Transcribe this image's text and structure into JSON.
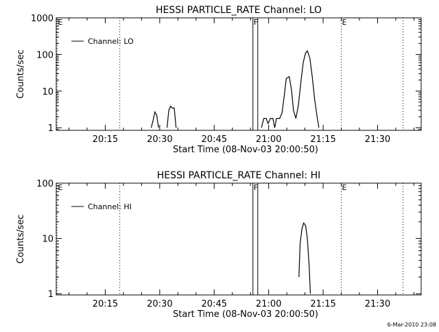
{
  "footer": {
    "timestamp": "6-Mar-2010 23:08"
  },
  "chart_data": [
    {
      "type": "line",
      "title": "HESSI PARTICLE_RATE Channel: LO",
      "xlabel": "Start Time (08-Nov-03 20:00:50)",
      "ylabel": "Counts/sec",
      "yscale": "log",
      "xlim": [
        "20:01:30",
        "21:42:00"
      ],
      "ylim": [
        0.85,
        1000
      ],
      "x_ticks": [
        "20:15",
        "20:30",
        "20:45",
        "21:00",
        "21:15",
        "21:30"
      ],
      "y_ticks": [
        "1",
        "10",
        "100",
        "1000"
      ],
      "legend": {
        "label": "Channel: LO",
        "position": "top-left"
      },
      "markers": [
        {
          "label": "E",
          "time": "20:01:45",
          "style": "dotted"
        },
        {
          "label": "",
          "time": "20:19:00",
          "style": "dotted"
        },
        {
          "label": "F",
          "time": "20:55:40",
          "style": "solid"
        },
        {
          "label": "",
          "time": "20:57:00",
          "style": "solid"
        },
        {
          "label": "E",
          "time": "21:20:00",
          "style": "dotted"
        },
        {
          "label": "",
          "time": "21:37:00",
          "style": "dotted"
        }
      ],
      "series": [
        {
          "name": "Channel: LO",
          "segments": [
            [
              [
                "20:27:40",
                1
              ],
              [
                "20:28:10",
                1.6
              ],
              [
                "20:28:40",
                2.7
              ],
              [
                "20:29:10",
                2.2
              ],
              [
                "20:29:40",
                1
              ]
            ],
            [
              [
                "20:32:00",
                1
              ],
              [
                "20:32:30",
                3.0
              ],
              [
                "20:33:00",
                3.9
              ],
              [
                "20:33:30",
                3.4
              ],
              [
                "20:34:00",
                3.5
              ],
              [
                "20:34:30",
                1
              ]
            ],
            [
              [
                "20:58:00",
                1
              ],
              [
                "20:58:40",
                1.8
              ],
              [
                "20:59:20",
                1.8
              ],
              [
                "20:59:50",
                1.3
              ],
              [
                "21:00:30",
                1.8
              ],
              [
                "21:01:10",
                1.8
              ],
              [
                "21:01:40",
                1
              ],
              [
                "21:02:10",
                1.8
              ],
              [
                "21:03:00",
                1.8
              ],
              [
                "21:03:40",
                2.5
              ],
              [
                "21:04:20",
                8
              ],
              [
                "21:04:50",
                22
              ],
              [
                "21:05:40",
                25
              ],
              [
                "21:06:20",
                10
              ],
              [
                "21:06:50",
                3
              ],
              [
                "21:07:30",
                1.8
              ],
              [
                "21:08:10",
                4
              ],
              [
                "21:08:50",
                16
              ],
              [
                "21:09:30",
                60
              ],
              [
                "21:10:10",
                110
              ],
              [
                "21:10:40",
                125
              ],
              [
                "21:11:20",
                80
              ],
              [
                "21:12:00",
                25
              ],
              [
                "21:12:40",
                6
              ],
              [
                "21:13:20",
                2
              ],
              [
                "21:13:50",
                1
              ]
            ]
          ]
        }
      ]
    },
    {
      "type": "line",
      "title": "HESSI PARTICLE_RATE Channel: HI",
      "xlabel": "Start Time (08-Nov-03 20:00:50)",
      "ylabel": "Counts/sec",
      "yscale": "log",
      "xlim": [
        "20:01:30",
        "21:42:00"
      ],
      "ylim": [
        0.95,
        100
      ],
      "x_ticks": [
        "20:15",
        "20:30",
        "20:45",
        "21:00",
        "21:15",
        "21:30"
      ],
      "y_ticks": [
        "1",
        "10",
        "100"
      ],
      "legend": {
        "label": "Channel: HI",
        "position": "top-left"
      },
      "markers": [
        {
          "label": "E",
          "time": "20:01:45",
          "style": "dotted"
        },
        {
          "label": "",
          "time": "20:19:00",
          "style": "dotted"
        },
        {
          "label": "F",
          "time": "20:55:40",
          "style": "solid"
        },
        {
          "label": "",
          "time": "20:57:00",
          "style": "solid"
        },
        {
          "label": "E",
          "time": "21:20:00",
          "style": "dotted"
        },
        {
          "label": "",
          "time": "21:37:00",
          "style": "dotted"
        }
      ],
      "series": [
        {
          "name": "Channel: HI",
          "segments": [
            [
              [
                "21:08:20",
                2
              ],
              [
                "21:08:40",
                8
              ],
              [
                "21:09:10",
                15
              ],
              [
                "21:09:40",
                19
              ],
              [
                "21:10:10",
                17
              ],
              [
                "21:10:40",
                10
              ],
              [
                "21:11:10",
                3
              ],
              [
                "21:11:30",
                1
              ]
            ]
          ]
        }
      ]
    }
  ]
}
